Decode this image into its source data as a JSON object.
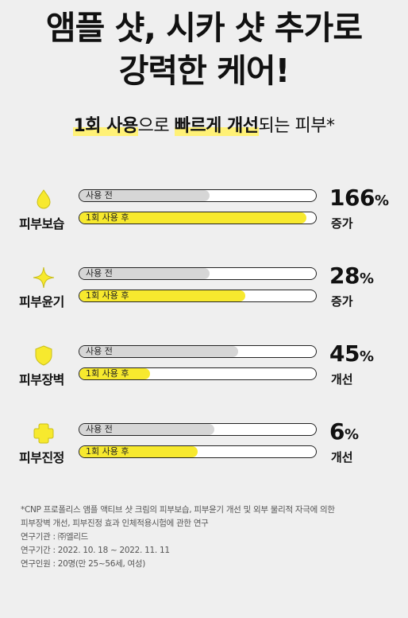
{
  "headline": {
    "line1": "앰플 샷, 시카 샷 추가로",
    "line2": "강력한 케어!"
  },
  "subhead": {
    "part1": "1회 사용",
    "part2": "으로 ",
    "part3": "빠르게 개선",
    "part4": "되는 피부*"
  },
  "bar_labels": {
    "before": "사용 전",
    "after": "1회 사용 후"
  },
  "rows": [
    {
      "icon": "droplet-icon",
      "category": "피부보습",
      "value": "166",
      "unit": "%",
      "change": "증가",
      "before_level": 0.55,
      "after_level": 0.96
    },
    {
      "icon": "sparkle-icon",
      "category": "피부윤기",
      "value": "28",
      "unit": "%",
      "change": "증가",
      "before_level": 0.55,
      "after_level": 0.7
    },
    {
      "icon": "shield-icon",
      "category": "피부장벽",
      "value": "45",
      "unit": "%",
      "change": "개선",
      "before_level": 0.67,
      "after_level": 0.3
    },
    {
      "icon": "cross-icon",
      "category": "피부진정",
      "value": "6",
      "unit": "%",
      "change": "개선",
      "before_level": 0.57,
      "after_level": 0.5
    }
  ],
  "colors": {
    "yellow": "#f7e92e",
    "gray": "#d6d6d6",
    "background": "#efefef"
  },
  "footnote": [
    "*CNP 프로폴리스 앰플 액티브 샷 크림의 피부보습, 피부윤기 개선 및 외부 물리적 자극에 의한",
    "피부장벽 개선, 피부진정 효과 인체적용시험에 관한 연구",
    "연구기관 : ㈜엘리드",
    "연구기간 : 2022. 10. 18 ~ 2022. 11. 11",
    "연구인원 : 20명(만 25~56세, 여성)"
  ]
}
